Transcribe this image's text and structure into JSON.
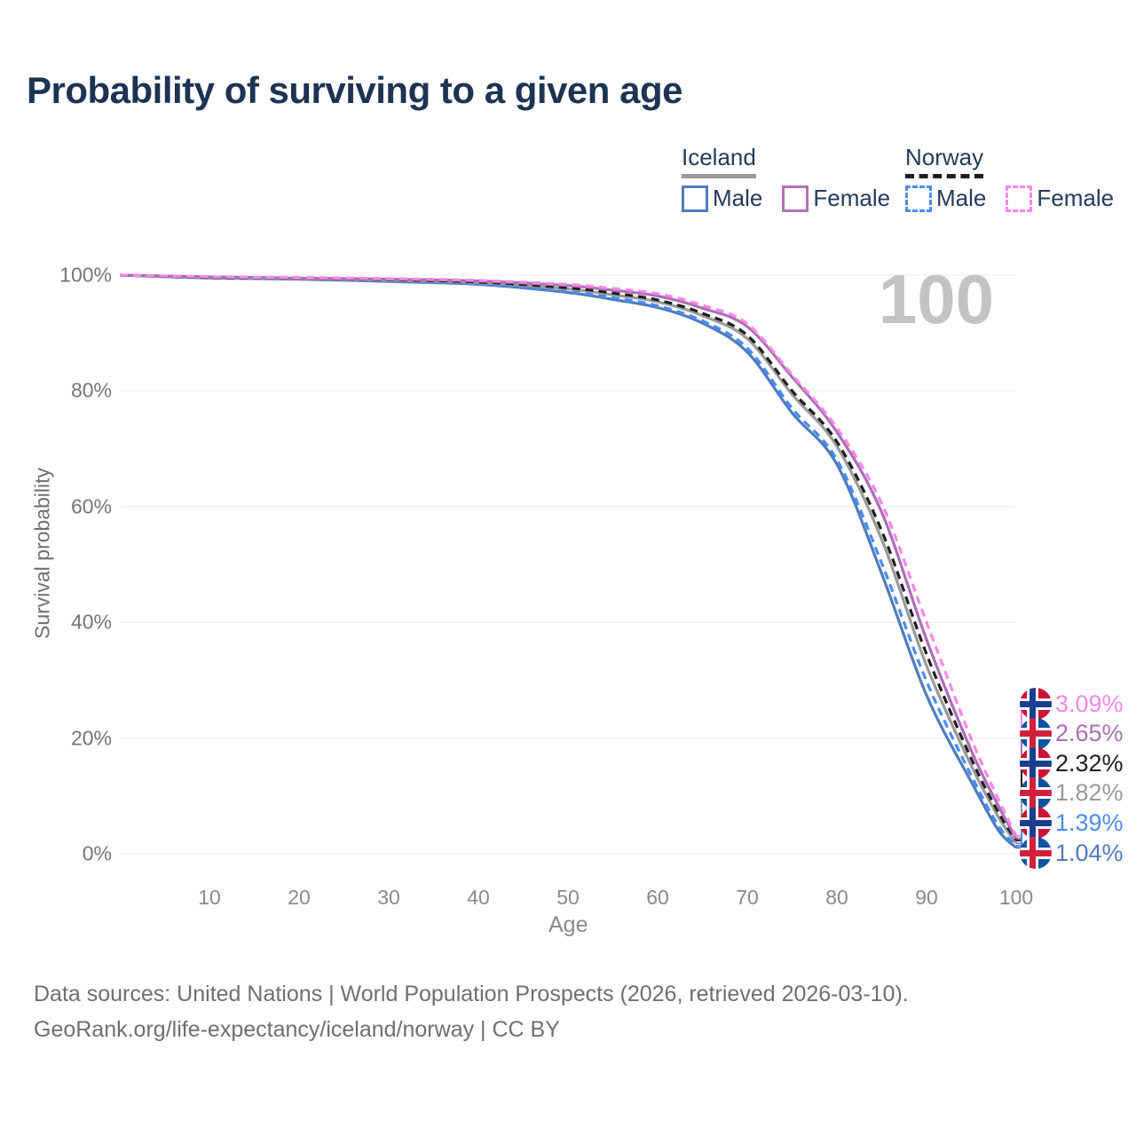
{
  "title": "Probability of surviving to a given age",
  "age_watermark": "100",
  "legend": {
    "groups": [
      {
        "label": "Iceland",
        "line_style": "solid",
        "line_color": "#9a9a9a",
        "items": [
          {
            "label": "Male",
            "color": "#4f7cbe",
            "dashed": false
          },
          {
            "label": "Female",
            "color": "#b273b8",
            "dashed": false
          }
        ]
      },
      {
        "label": "Norway",
        "line_style": "dashed",
        "line_color": "#1f1f1f",
        "items": [
          {
            "label": "Male",
            "color": "#4a8cf5",
            "dashed": true
          },
          {
            "label": "Female",
            "color": "#fc86e9",
            "dashed": true
          }
        ]
      }
    ]
  },
  "chart_data": {
    "type": "line",
    "title": "Probability of surviving to a given age",
    "xlabel": "Age",
    "ylabel": "Survival probability",
    "xlim": [
      0,
      100
    ],
    "ylim": [
      0,
      100
    ],
    "grid": true,
    "legend_position": "top-right",
    "age_marker": "100",
    "x_ticks": [
      {
        "value": 10,
        "label": "10"
      },
      {
        "value": 20,
        "label": "20"
      },
      {
        "value": 30,
        "label": "30"
      },
      {
        "value": 40,
        "label": "40"
      },
      {
        "value": 50,
        "label": "50"
      },
      {
        "value": 60,
        "label": "60"
      },
      {
        "value": 70,
        "label": "70"
      },
      {
        "value": 80,
        "label": "80"
      },
      {
        "value": 90,
        "label": "90"
      },
      {
        "value": 100,
        "label": "100"
      }
    ],
    "y_ticks": [
      {
        "value": 0,
        "label": "0%"
      },
      {
        "value": 20,
        "label": "20%"
      },
      {
        "value": 40,
        "label": "40%"
      },
      {
        "value": 60,
        "label": "60%"
      },
      {
        "value": 80,
        "label": "80%"
      },
      {
        "value": 100,
        "label": "100%"
      }
    ],
    "x": [
      0,
      10,
      20,
      30,
      40,
      50,
      55,
      60,
      65,
      70,
      75,
      80,
      85,
      90,
      95,
      98,
      100
    ],
    "series": [
      {
        "name": "Norway Female",
        "country": "Norway",
        "sex": "Female",
        "color": "#fc86e9",
        "dashed": true,
        "end_label": "3.09%",
        "flag": "norway",
        "values": [
          100,
          99.7,
          99.6,
          99.4,
          99.1,
          98.4,
          97.7,
          96.8,
          94.8,
          91.6,
          82.8,
          73.6,
          60.5,
          40.0,
          19.8,
          9.5,
          3.09
        ]
      },
      {
        "name": "Iceland Female",
        "country": "Iceland",
        "sex": "Female",
        "color": "#ab6fb5",
        "dashed": false,
        "end_label": "2.65%",
        "flag": "iceland",
        "values": [
          100,
          99.7,
          99.5,
          99.3,
          99.0,
          98.2,
          97.4,
          96.4,
          94.3,
          91.1,
          82.4,
          72.9,
          59.0,
          37.0,
          17.8,
          8.3,
          2.65
        ]
      },
      {
        "name": "Norway (both sexes)",
        "country": "Norway",
        "sex": "Both",
        "color": "#1f1f1f",
        "dashed": true,
        "end_label": "2.32%",
        "flag": "norway",
        "values": [
          100,
          99.6,
          99.5,
          99.2,
          98.8,
          97.8,
          96.9,
          95.7,
          93.4,
          89.6,
          80.0,
          71.2,
          55.8,
          34.5,
          16.4,
          7.2,
          2.32
        ]
      },
      {
        "name": "Iceland (both sexes)",
        "country": "Iceland",
        "sex": "Both",
        "color": "#9a9a9a",
        "dashed": false,
        "end_label": "1.82%",
        "flag": "iceland",
        "values": [
          100,
          99.6,
          99.4,
          99.1,
          98.7,
          97.6,
          96.6,
          95.4,
          93.0,
          89.0,
          79.4,
          70.4,
          54.3,
          32.5,
          15.2,
          6.4,
          1.82
        ]
      },
      {
        "name": "Norway Male",
        "country": "Norway",
        "sex": "Male",
        "color": "#4a8cf5",
        "dashed": true,
        "end_label": "1.39%",
        "flag": "norway",
        "values": [
          100,
          99.6,
          99.4,
          99.0,
          98.5,
          97.2,
          96.1,
          94.7,
          92.1,
          87.4,
          77.0,
          68.1,
          50.2,
          29.8,
          13.5,
          4.9,
          1.39
        ]
      },
      {
        "name": "Iceland Male",
        "country": "Iceland",
        "sex": "Male",
        "color": "#4f7cbe",
        "dashed": false,
        "end_label": "1.04%",
        "flag": "iceland",
        "values": [
          100,
          99.5,
          99.3,
          98.9,
          98.4,
          97.0,
          95.8,
          94.4,
          91.7,
          86.7,
          76.2,
          67.3,
          48.4,
          27.4,
          12.4,
          4.1,
          1.04
        ]
      }
    ]
  },
  "flags": {
    "norway": {
      "bg": "#cc1236",
      "cross": "#1a3e8f",
      "fimbriation": "#ffffff"
    },
    "iceland": {
      "bg": "#0f52a0",
      "cross": "#d21f3c",
      "fimbriation": "#ffffff"
    }
  },
  "footer": {
    "line1": "Data sources: United Nations | World Population Prospects (2026, retrieved 2026-03-10).",
    "line2": "GeoRank.org/life-expectancy/iceland/norway | CC BY"
  }
}
